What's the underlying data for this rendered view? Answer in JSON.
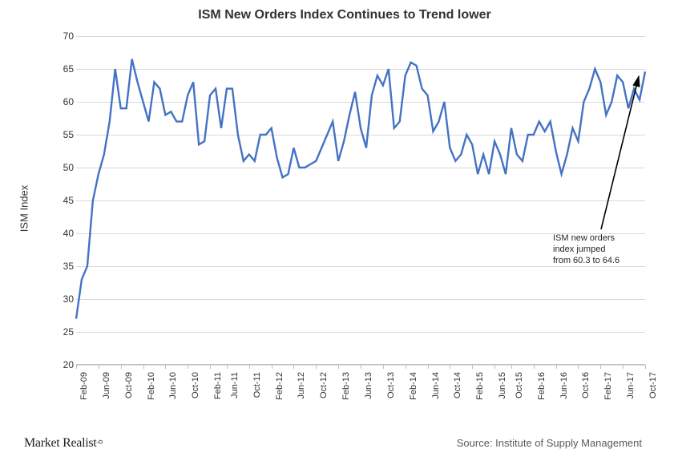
{
  "chart": {
    "type": "line",
    "title": "ISM New Orders Index Continues to Trend lower",
    "title_fontsize": 16,
    "title_color": "#333333",
    "ylabel": "ISM Index",
    "ylabel_fontsize": 13,
    "ylabel_color": "#333333",
    "ylim": [
      20,
      70
    ],
    "ytick_step": 5,
    "ytick_fontsize": 12,
    "xtick_fontsize": 11,
    "grid_color": "#d9d9d9",
    "axis_color": "#bfbfbf",
    "background_color": "#ffffff",
    "line_color": "#4472c4",
    "line_width": 2.4,
    "x_labels": [
      "Feb-09",
      "Jun-09",
      "Oct-09",
      "Feb-10",
      "Jun-10",
      "Oct-10",
      "Feb-11",
      "Jun-11",
      "Oct-11",
      "Feb-12",
      "Jun-12",
      "Oct-12",
      "Feb-13",
      "Jun-13",
      "Oct-13",
      "Feb-14",
      "Jun-14",
      "Oct-14",
      "Feb-15",
      "Jun-15",
      "Oct-15",
      "Feb-16",
      "Jun-16",
      "Oct-16",
      "Feb-17",
      "Jun-17",
      "Oct-17"
    ],
    "series": [
      {
        "name": "ISM New Orders",
        "values": [
          27,
          33,
          35,
          45,
          49,
          52,
          57,
          65,
          59,
          59,
          66.5,
          63,
          60,
          57,
          63,
          62,
          58,
          58.5,
          57,
          57,
          61,
          63,
          53.5,
          54,
          61,
          62,
          56,
          62,
          62,
          55,
          51,
          52,
          51,
          55,
          55,
          56,
          51.5,
          48.5,
          49,
          53,
          50,
          50,
          50.5,
          51,
          53,
          55,
          57,
          51,
          54,
          58,
          61.5,
          56,
          53,
          61,
          64,
          62.5,
          65,
          56,
          57,
          64,
          66,
          65.5,
          62,
          61,
          55.5,
          57,
          60,
          53,
          51,
          52,
          55,
          53.5,
          49,
          52,
          49,
          54,
          52,
          49,
          56,
          52,
          51,
          55,
          55,
          57,
          55.5,
          57,
          52.5,
          49,
          52,
          56,
          54,
          60,
          62,
          65,
          63,
          58,
          60,
          64,
          63,
          59,
          62,
          60.3,
          64.6
        ]
      }
    ],
    "annotation": {
      "text_lines": [
        "ISM new orders",
        "index jumped",
        "from 60.3  to 64.6"
      ],
      "text_fontsize": 11,
      "text_color": "#262626",
      "arrow_color": "#000000",
      "arrow_width": 1.6
    }
  },
  "footer": {
    "logo_text": "Market Realist",
    "logo_fontsize": 16,
    "source_text": "Source: Institute of Supply Management",
    "source_fontsize": 13,
    "source_color": "#5a5a5a"
  }
}
